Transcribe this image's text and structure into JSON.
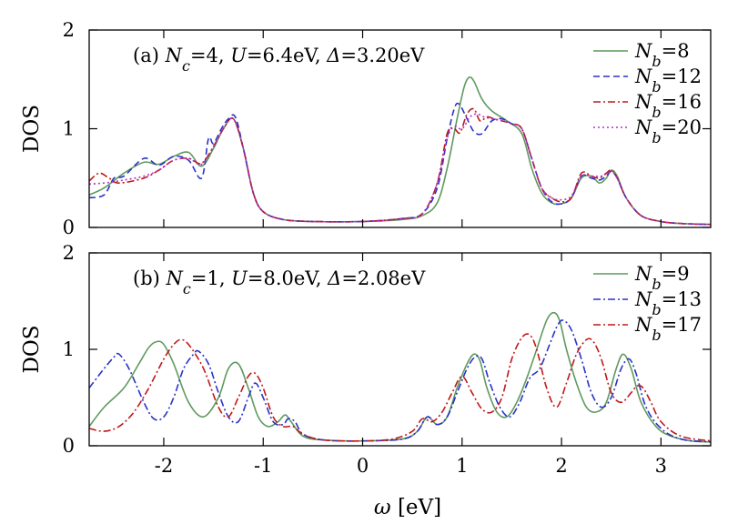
{
  "figure": {
    "xlabel": "ω [eV]"
  },
  "chart_data": [
    {
      "type": "line",
      "panel": "top",
      "annotation": "(a) Nc=4, U=6.4eV, Δ=3.20eV",
      "ylabel": "DOS",
      "xlim": [
        -2.75,
        3.5
      ],
      "ylim": [
        0,
        2
      ],
      "xticks": [
        -2,
        -1,
        0,
        1,
        2,
        3
      ],
      "xtick_labels": [
        "-2",
        "-1",
        "0",
        "1",
        "2",
        "3"
      ],
      "yticks": [
        0,
        1,
        2
      ],
      "ytick_labels": [
        "0",
        "1",
        "2"
      ],
      "legend_position": "top-right",
      "series": [
        {
          "name": "Nb=8",
          "sub": "b",
          "tail": "=8",
          "color": "#5f9a5f",
          "dash": "",
          "x": [
            -2.75,
            -2.6,
            -2.4,
            -2.2,
            -2.05,
            -1.9,
            -1.75,
            -1.62,
            -1.5,
            -1.4,
            -1.3,
            -1.2,
            -1.1,
            -1.0,
            -0.8,
            -0.5,
            0,
            0.4,
            0.6,
            0.75,
            0.85,
            0.95,
            1.02,
            1.07,
            1.12,
            1.2,
            1.3,
            1.45,
            1.6,
            1.7,
            1.8,
            1.9,
            2.0,
            2.1,
            2.2,
            2.3,
            2.38,
            2.45,
            2.5,
            2.56,
            2.65,
            2.8,
            3.0,
            3.2,
            3.5
          ],
          "y": [
            0.33,
            0.4,
            0.55,
            0.66,
            0.64,
            0.72,
            0.76,
            0.62,
            0.8,
            1.0,
            1.1,
            0.8,
            0.35,
            0.16,
            0.08,
            0.06,
            0.06,
            0.08,
            0.12,
            0.25,
            0.6,
            1.1,
            1.42,
            1.52,
            1.48,
            1.3,
            1.18,
            1.08,
            0.95,
            0.6,
            0.35,
            0.25,
            0.24,
            0.3,
            0.5,
            0.52,
            0.45,
            0.5,
            0.58,
            0.52,
            0.3,
            0.12,
            0.06,
            0.04,
            0.03
          ]
        },
        {
          "name": "Nb=12",
          "sub": "b",
          "tail": "=12",
          "color": "#2a32c8",
          "dash": "7,4",
          "x": [
            -2.75,
            -2.6,
            -2.5,
            -2.4,
            -2.2,
            -2.05,
            -1.9,
            -1.75,
            -1.62,
            -1.55,
            -1.5,
            -1.42,
            -1.35,
            -1.28,
            -1.2,
            -1.1,
            -1.0,
            -0.8,
            -0.5,
            0,
            0.4,
            0.6,
            0.75,
            0.85,
            0.92,
            0.97,
            1.05,
            1.12,
            1.2,
            1.3,
            1.4,
            1.5,
            1.6,
            1.7,
            1.8,
            1.9,
            2.0,
            2.1,
            2.2,
            2.3,
            2.38,
            2.45,
            2.5,
            2.56,
            2.65,
            2.8,
            3.0,
            3.2,
            3.5
          ],
          "y": [
            0.3,
            0.33,
            0.5,
            0.52,
            0.7,
            0.63,
            0.72,
            0.68,
            0.5,
            0.9,
            0.85,
            1.0,
            1.1,
            1.12,
            0.8,
            0.35,
            0.16,
            0.08,
            0.06,
            0.06,
            0.09,
            0.14,
            0.4,
            0.9,
            1.2,
            1.25,
            1.1,
            0.97,
            0.95,
            1.08,
            1.1,
            1.05,
            1.0,
            0.7,
            0.4,
            0.26,
            0.24,
            0.3,
            0.52,
            0.5,
            0.48,
            0.52,
            0.57,
            0.5,
            0.3,
            0.12,
            0.06,
            0.04,
            0.03
          ]
        },
        {
          "name": "Nb=16",
          "sub": "b",
          "tail": "=16",
          "color": "#c01818",
          "dash": "8,3,2,3",
          "x": [
            -2.75,
            -2.65,
            -2.55,
            -2.45,
            -2.2,
            -2.05,
            -1.9,
            -1.75,
            -1.62,
            -1.5,
            -1.4,
            -1.3,
            -1.2,
            -1.1,
            -1.0,
            -0.8,
            -0.5,
            0,
            0.4,
            0.6,
            0.75,
            0.85,
            0.92,
            0.98,
            1.05,
            1.12,
            1.18,
            1.25,
            1.32,
            1.4,
            1.5,
            1.6,
            1.7,
            1.8,
            1.9,
            2.0,
            2.1,
            2.2,
            2.3,
            2.38,
            2.45,
            2.5,
            2.56,
            2.65,
            2.8,
            3.0,
            3.2,
            3.5
          ],
          "y": [
            0.47,
            0.55,
            0.5,
            0.45,
            0.5,
            0.58,
            0.68,
            0.7,
            0.65,
            0.82,
            1.0,
            1.1,
            0.8,
            0.35,
            0.16,
            0.08,
            0.06,
            0.06,
            0.09,
            0.14,
            0.45,
            0.95,
            1.0,
            0.96,
            1.15,
            1.2,
            1.08,
            1.12,
            1.1,
            1.08,
            1.05,
            1.0,
            0.7,
            0.4,
            0.3,
            0.26,
            0.3,
            0.55,
            0.52,
            0.5,
            0.55,
            0.58,
            0.5,
            0.3,
            0.12,
            0.06,
            0.04,
            0.03
          ]
        },
        {
          "name": "Nb=20",
          "sub": "b",
          "tail": "=20",
          "color": "#b030c8",
          "dash": "2,3",
          "x": [
            -2.75,
            -2.6,
            -2.4,
            -2.2,
            -2.05,
            -1.9,
            -1.75,
            -1.62,
            -1.5,
            -1.4,
            -1.3,
            -1.2,
            -1.1,
            -1.0,
            -0.8,
            -0.5,
            0,
            0.4,
            0.6,
            0.75,
            0.85,
            0.92,
            1.0,
            1.08,
            1.15,
            1.22,
            1.3,
            1.4,
            1.5,
            1.6,
            1.7,
            1.8,
            1.9,
            2.0,
            2.1,
            2.2,
            2.3,
            2.4,
            2.5,
            2.56,
            2.65,
            2.8,
            3.0,
            3.2,
            3.5
          ],
          "y": [
            0.44,
            0.45,
            0.48,
            0.52,
            0.58,
            0.68,
            0.7,
            0.64,
            0.82,
            1.0,
            1.1,
            0.8,
            0.35,
            0.16,
            0.08,
            0.06,
            0.06,
            0.09,
            0.14,
            0.45,
            0.9,
            1.02,
            1.0,
            1.12,
            1.15,
            1.12,
            1.1,
            1.08,
            1.05,
            1.0,
            0.7,
            0.4,
            0.3,
            0.28,
            0.32,
            0.52,
            0.52,
            0.52,
            0.56,
            0.5,
            0.3,
            0.12,
            0.06,
            0.04,
            0.03
          ]
        }
      ]
    },
    {
      "type": "line",
      "panel": "bottom",
      "annotation": "(b) Nc=1, U=8.0eV, Δ=2.08eV",
      "ylabel": "DOS",
      "xlim": [
        -2.75,
        3.5
      ],
      "ylim": [
        0,
        2
      ],
      "xticks": [
        -2,
        -1,
        0,
        1,
        2,
        3
      ],
      "xtick_labels": [
        "-2",
        "-1",
        "0",
        "1",
        "2",
        "3"
      ],
      "yticks": [
        0,
        1,
        2
      ],
      "ytick_labels": [
        "0",
        "1",
        "2"
      ],
      "legend_position": "top-right",
      "series": [
        {
          "name": "Nb=9",
          "sub": "b",
          "tail": "=9",
          "color": "#5f9a5f",
          "dash": "",
          "x": [
            -2.75,
            -2.6,
            -2.4,
            -2.25,
            -2.15,
            -2.07,
            -2.0,
            -1.9,
            -1.75,
            -1.6,
            -1.45,
            -1.35,
            -1.25,
            -1.15,
            -1.05,
            -0.95,
            -0.85,
            -0.78,
            -0.72,
            -0.6,
            -0.4,
            0,
            0.4,
            0.55,
            0.65,
            0.75,
            0.85,
            0.95,
            1.05,
            1.12,
            1.18,
            1.25,
            1.35,
            1.45,
            1.55,
            1.65,
            1.75,
            1.85,
            1.92,
            1.98,
            2.05,
            2.15,
            2.25,
            2.35,
            2.45,
            2.55,
            2.62,
            2.7,
            2.8,
            2.95,
            3.1,
            3.3,
            3.5
          ],
          "y": [
            0.2,
            0.4,
            0.6,
            0.85,
            1.02,
            1.08,
            1.05,
            0.85,
            0.45,
            0.3,
            0.5,
            0.8,
            0.85,
            0.6,
            0.3,
            0.2,
            0.25,
            0.32,
            0.25,
            0.1,
            0.06,
            0.05,
            0.07,
            0.15,
            0.3,
            0.22,
            0.3,
            0.6,
            0.85,
            0.95,
            0.88,
            0.6,
            0.35,
            0.3,
            0.45,
            0.7,
            1.0,
            1.3,
            1.38,
            1.3,
            1.0,
            0.65,
            0.4,
            0.35,
            0.45,
            0.8,
            0.95,
            0.8,
            0.45,
            0.2,
            0.1,
            0.05,
            0.04
          ]
        },
        {
          "name": "Nb=13",
          "sub": "b",
          "tail": "=13",
          "color": "#2a32c8",
          "dash": "8,3,2,3",
          "x": [
            -2.75,
            -2.6,
            -2.5,
            -2.45,
            -2.35,
            -2.2,
            -2.1,
            -2.0,
            -1.9,
            -1.8,
            -1.7,
            -1.65,
            -1.55,
            -1.45,
            -1.35,
            -1.25,
            -1.15,
            -1.08,
            -1.0,
            -0.9,
            -0.8,
            -0.75,
            -0.68,
            -0.6,
            -0.4,
            0,
            0.4,
            0.55,
            0.65,
            0.75,
            0.85,
            0.95,
            1.05,
            1.13,
            1.2,
            1.28,
            1.38,
            1.48,
            1.58,
            1.68,
            1.78,
            1.88,
            1.96,
            2.02,
            2.1,
            2.2,
            2.3,
            2.4,
            2.5,
            2.6,
            2.68,
            2.75,
            2.85,
            3.0,
            3.2,
            3.5
          ],
          "y": [
            0.6,
            0.8,
            0.92,
            0.95,
            0.8,
            0.45,
            0.28,
            0.3,
            0.5,
            0.8,
            0.95,
            0.98,
            0.85,
            0.55,
            0.3,
            0.25,
            0.5,
            0.65,
            0.5,
            0.25,
            0.22,
            0.28,
            0.25,
            0.12,
            0.06,
            0.05,
            0.07,
            0.15,
            0.3,
            0.22,
            0.3,
            0.55,
            0.8,
            0.92,
            0.9,
            0.65,
            0.4,
            0.3,
            0.45,
            0.7,
            0.8,
            1.05,
            1.25,
            1.3,
            1.2,
            0.9,
            0.55,
            0.4,
            0.5,
            0.8,
            0.9,
            0.75,
            0.4,
            0.18,
            0.07,
            0.04
          ]
        },
        {
          "name": "Nb=17",
          "sub": "b",
          "tail": "=17",
          "color": "#c01818",
          "dash": "8,3,2,3",
          "x": [
            -2.75,
            -2.6,
            -2.45,
            -2.3,
            -2.15,
            -2.0,
            -1.9,
            -1.83,
            -1.75,
            -1.6,
            -1.45,
            -1.35,
            -1.25,
            -1.15,
            -1.08,
            -1.0,
            -0.9,
            -0.8,
            -0.7,
            -0.6,
            -0.4,
            0,
            0.3,
            0.5,
            0.6,
            0.7,
            0.8,
            0.9,
            1.0,
            1.1,
            1.2,
            1.3,
            1.4,
            1.5,
            1.6,
            1.68,
            1.75,
            1.85,
            1.95,
            2.05,
            2.15,
            2.25,
            2.32,
            2.4,
            2.5,
            2.6,
            2.7,
            2.76,
            2.82,
            2.9,
            3.0,
            3.2,
            3.5
          ],
          "y": [
            0.18,
            0.15,
            0.2,
            0.35,
            0.6,
            0.9,
            1.05,
            1.1,
            1.05,
            0.8,
            0.4,
            0.3,
            0.5,
            0.72,
            0.75,
            0.6,
            0.3,
            0.2,
            0.2,
            0.12,
            0.06,
            0.05,
            0.07,
            0.15,
            0.28,
            0.25,
            0.35,
            0.55,
            0.72,
            0.55,
            0.38,
            0.35,
            0.5,
            0.9,
            1.12,
            1.15,
            1.0,
            0.6,
            0.4,
            0.65,
            0.95,
            1.1,
            1.08,
            0.9,
            0.55,
            0.45,
            0.55,
            0.62,
            0.6,
            0.45,
            0.25,
            0.1,
            0.05
          ]
        }
      ]
    }
  ]
}
